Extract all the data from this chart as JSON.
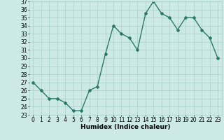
{
  "x": [
    0,
    1,
    2,
    3,
    4,
    5,
    6,
    7,
    8,
    9,
    10,
    11,
    12,
    13,
    14,
    15,
    16,
    17,
    18,
    19,
    20,
    21,
    22,
    23
  ],
  "y": [
    27,
    26,
    25,
    25,
    24.5,
    23.5,
    23.5,
    26,
    26.5,
    30.5,
    34,
    33,
    32.5,
    31,
    35.5,
    37,
    35.5,
    35,
    33.5,
    35,
    35,
    33.5,
    32.5,
    30
  ],
  "line_color": "#2a7a6a",
  "marker": "D",
  "marker_size": 2,
  "bg_color": "#cce9e5",
  "grid_color": "#aacfcc",
  "xlabel": "Humidex (Indice chaleur)",
  "ylim": [
    23,
    37
  ],
  "xlim": [
    -0.5,
    23.5
  ],
  "yticks": [
    23,
    24,
    25,
    26,
    27,
    28,
    29,
    30,
    31,
    32,
    33,
    34,
    35,
    36,
    37
  ],
  "xticks": [
    0,
    1,
    2,
    3,
    4,
    5,
    6,
    7,
    8,
    9,
    10,
    11,
    12,
    13,
    14,
    15,
    16,
    17,
    18,
    19,
    20,
    21,
    22,
    23
  ],
  "tick_fontsize": 5.5,
  "xlabel_fontsize": 6.5,
  "line_width": 1.0
}
